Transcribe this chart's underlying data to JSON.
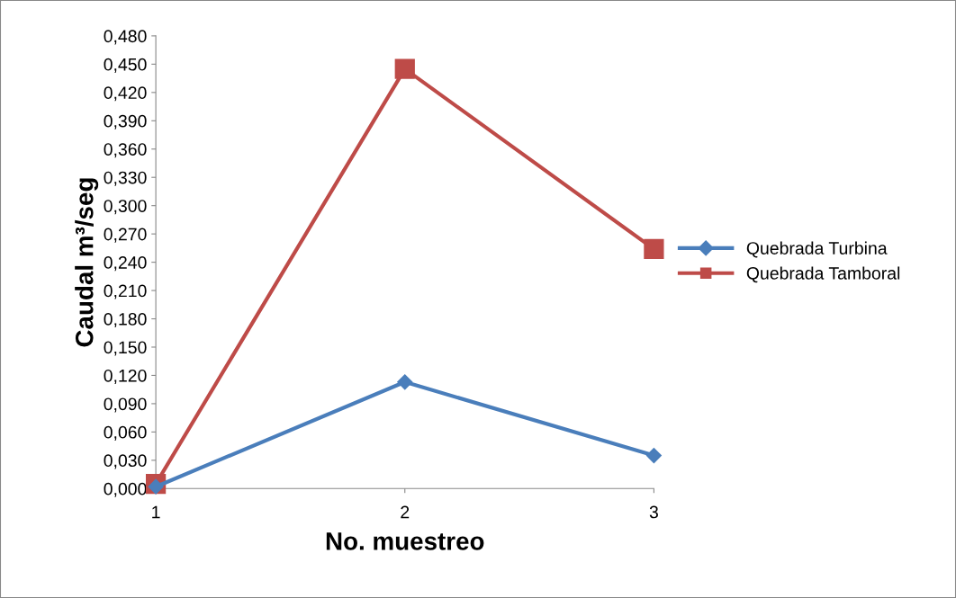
{
  "chart_data": {
    "type": "line",
    "xlabel": "No. muestreo",
    "ylabel": "Caudal m³/seg",
    "categories": [
      "1",
      "2",
      "3"
    ],
    "series": [
      {
        "name": "Quebrada Turbina",
        "color": "#4a7ebb",
        "marker": "diamond",
        "values": [
          0.002,
          0.113,
          0.035
        ]
      },
      {
        "name": "Quebrada Tamboral",
        "color": "#be4b48",
        "marker": "square",
        "values": [
          0.005,
          0.445,
          0.254
        ]
      }
    ],
    "ylim": [
      0,
      0.48
    ],
    "yticks": [
      {
        "value": 0,
        "label": "0,000"
      },
      {
        "value": 0.03,
        "label": "0,030"
      },
      {
        "value": 0.06,
        "label": "0,060"
      },
      {
        "value": 0.09,
        "label": "0,090"
      },
      {
        "value": 0.12,
        "label": "0,120"
      },
      {
        "value": 0.15,
        "label": "0,150"
      },
      {
        "value": 0.18,
        "label": "0,180"
      },
      {
        "value": 0.21,
        "label": "0,210"
      },
      {
        "value": 0.24,
        "label": "0,240"
      },
      {
        "value": 0.27,
        "label": "0,270"
      },
      {
        "value": 0.3,
        "label": "0,300"
      },
      {
        "value": 0.33,
        "label": "0,330"
      },
      {
        "value": 0.36,
        "label": "0,360"
      },
      {
        "value": 0.39,
        "label": "0,390"
      },
      {
        "value": 0.42,
        "label": "0,420"
      },
      {
        "value": 0.45,
        "label": "0,450"
      },
      {
        "value": 0.48,
        "label": "0,480"
      }
    ],
    "grid": false,
    "legend": "right",
    "line_style": "solid"
  }
}
